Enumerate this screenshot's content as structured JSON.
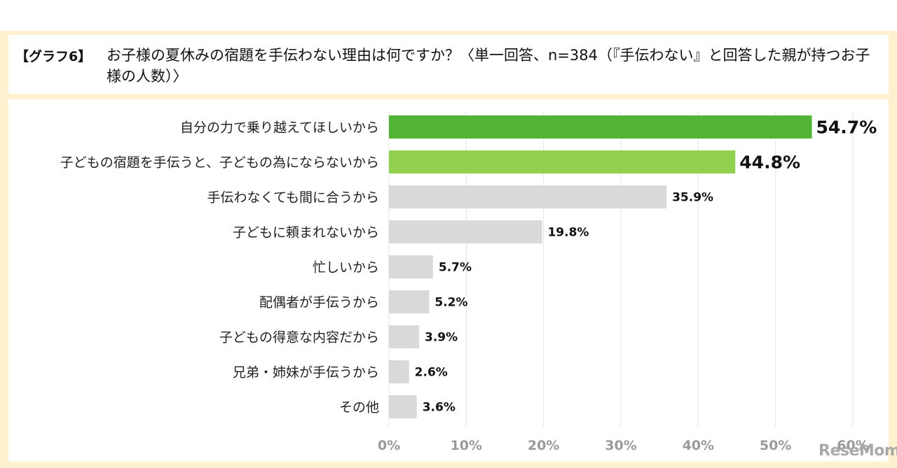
{
  "header": {
    "tag": "【グラフ6】",
    "title": "お子様の夏休みの宿題を手伝わない理由は何ですか？〈単一回答、n=384（『手伝わない』と回答した親が持つお子様の人数）〉"
  },
  "watermark": "ReseMom",
  "colors": {
    "top1": "#51b434",
    "top2": "#92d050",
    "other": "#d9d9d9",
    "frame": "#fdf1cf"
  },
  "chart_data": {
    "type": "bar",
    "orientation": "horizontal",
    "categories": [
      "自分の力で乗り越えてほしいから",
      "子どもの宿題を手伝うと、子どもの為にならないから",
      "手伝わなくても間に合うから",
      "子どもに頼まれないから",
      "忙しいから",
      "配偶者が手伝うから",
      "子どもの得意な内容だから",
      "兄弟・姉妹が手伝うから",
      "その他"
    ],
    "values": [
      54.7,
      44.8,
      35.9,
      19.8,
      5.7,
      5.2,
      3.9,
      2.6,
      3.6
    ],
    "value_labels": [
      "54.7%",
      "44.8%",
      "35.9%",
      "19.8%",
      "5.7%",
      "5.2%",
      "3.9%",
      "2.6%",
      "3.6%"
    ],
    "x_ticks": [
      "0%",
      "10%",
      "20%",
      "30%",
      "40%",
      "50%",
      "60%"
    ],
    "xlim": [
      0,
      60
    ],
    "grid": "vertical",
    "title": "",
    "xlabel": "",
    "ylabel": ""
  }
}
